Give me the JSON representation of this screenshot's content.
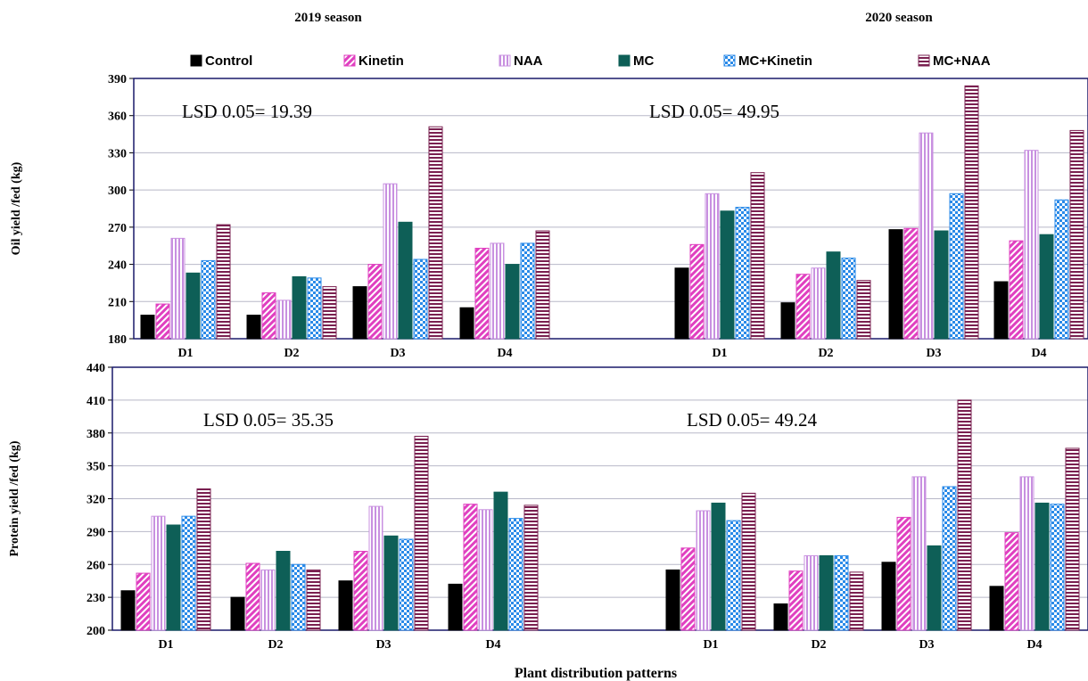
{
  "titles": {
    "season1": "2019 season",
    "season2": "2020 season"
  },
  "xlabel": "Plant distribution patterns",
  "legend": [
    {
      "name": "Control",
      "color": "#000000",
      "pattern": "solid"
    },
    {
      "name": "Kinetin",
      "color": "#e040c0",
      "pattern": "diag"
    },
    {
      "name": "NAA",
      "color": "#c890e0",
      "pattern": "vlines"
    },
    {
      "name": "MC",
      "color": "#0e5f57",
      "pattern": "solid"
    },
    {
      "name": "MC+Kinetin",
      "color": "#2a8ae8",
      "pattern": "checker"
    },
    {
      "name": "MC+NAA",
      "color": "#7a2050",
      "pattern": "hlines"
    }
  ],
  "chart_data": [
    {
      "type": "bar",
      "ylabel": "Oil yield /fed (kg)",
      "ylim": [
        180,
        390
      ],
      "yticks": [
        180,
        210,
        240,
        270,
        300,
        330,
        360,
        390
      ],
      "categories": [
        "D1",
        "D2",
        "D3",
        "D4",
        "D1",
        "D2",
        "D3",
        "D4"
      ],
      "annotations": [
        "LSD 0.05= 19.39",
        "LSD 0.05= 49.95"
      ],
      "series": [
        {
          "name": "Control",
          "values": [
            199,
            199,
            222,
            205,
            237,
            209,
            268,
            226
          ]
        },
        {
          "name": "Kinetin",
          "values": [
            208,
            217,
            240,
            253,
            256,
            232,
            269,
            259
          ]
        },
        {
          "name": "NAA",
          "values": [
            261,
            211,
            305,
            257,
            297,
            237,
            346,
            332
          ]
        },
        {
          "name": "MC",
          "values": [
            233,
            230,
            274,
            240,
            283,
            250,
            267,
            264
          ]
        },
        {
          "name": "MC+Kinetin",
          "values": [
            243,
            229,
            244,
            257,
            286,
            245,
            297,
            292
          ]
        },
        {
          "name": "MC+NAA",
          "values": [
            272,
            222,
            351,
            267,
            314,
            227,
            384,
            348
          ]
        }
      ]
    },
    {
      "type": "bar",
      "ylabel": "Protein yield /fed (kg)",
      "ylim": [
        200,
        440
      ],
      "yticks": [
        200,
        230,
        260,
        290,
        320,
        350,
        380,
        410,
        440
      ],
      "categories": [
        "D1",
        "D2",
        "D3",
        "D4",
        "D1",
        "D2",
        "D3",
        "D4"
      ],
      "annotations": [
        "LSD 0.05= 35.35",
        "LSD 0.05= 49.24"
      ],
      "series": [
        {
          "name": "Control",
          "values": [
            236,
            230,
            245,
            242,
            255,
            224,
            262,
            240
          ]
        },
        {
          "name": "Kinetin",
          "values": [
            252,
            261,
            272,
            315,
            275,
            254,
            303,
            289
          ]
        },
        {
          "name": "NAA",
          "values": [
            304,
            255,
            313,
            310,
            309,
            268,
            340,
            340
          ]
        },
        {
          "name": "MC",
          "values": [
            296,
            272,
            286,
            326,
            316,
            268,
            277,
            316
          ]
        },
        {
          "name": "MC+Kinetin",
          "values": [
            304,
            260,
            283,
            302,
            300,
            268,
            331,
            315
          ]
        },
        {
          "name": "MC+NAA",
          "values": [
            329,
            255,
            377,
            314,
            325,
            253,
            410,
            366
          ]
        }
      ]
    }
  ]
}
